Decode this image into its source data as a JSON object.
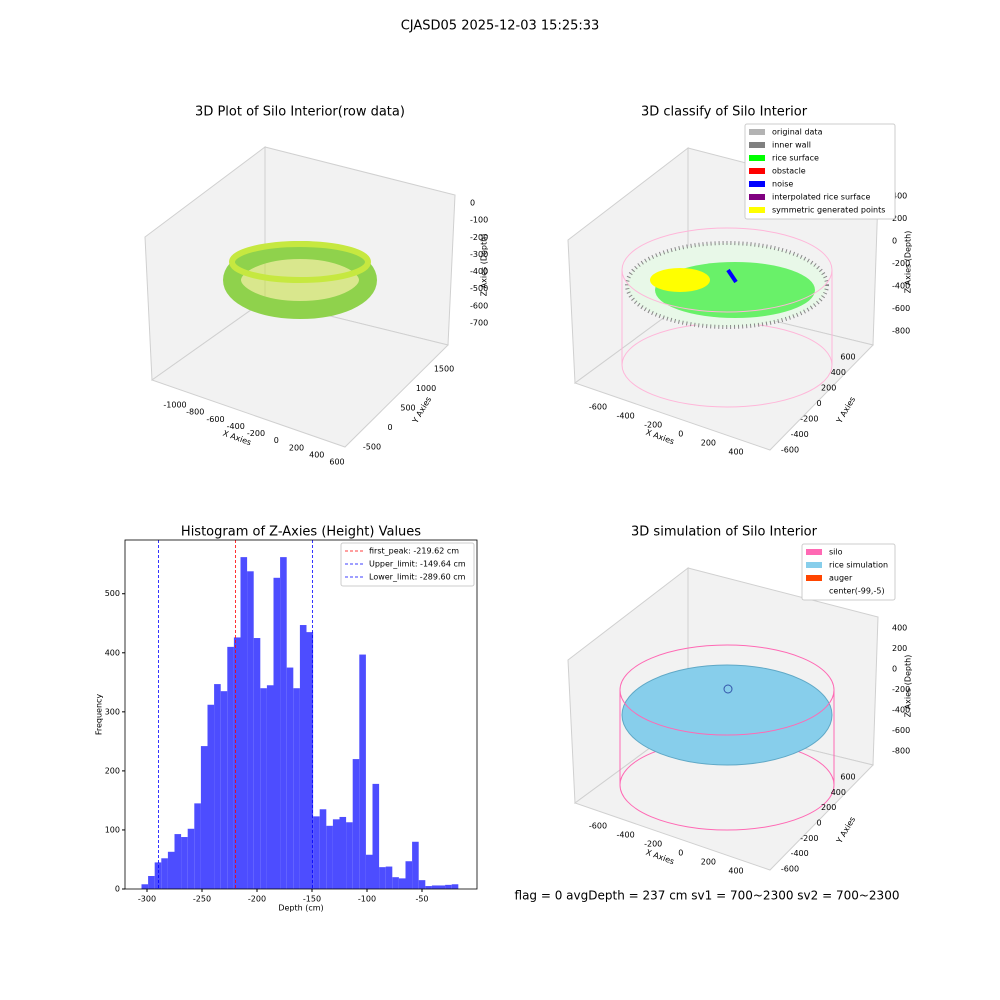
{
  "title": "CJASD05 2025-12-03 15:25:33",
  "footer": "flag = 0    avgDepth = 237 cm  sv1 = 700~2300  sv2 = 700~2300",
  "chart_data": [
    {
      "type": "histogram",
      "title": "Histogram of Z-Axies (Height) Values",
      "x_label": "Depth (cm)",
      "y_label": "Frequency",
      "color": "#4d4dff",
      "bins": [
        -305,
        -299,
        -293,
        -287,
        -281,
        -275,
        -269,
        -263,
        -257,
        -251,
        -245,
        -239,
        -233,
        -227,
        -221,
        -215,
        -209,
        -203,
        -197,
        -191,
        -185,
        -179,
        -173,
        -167,
        -161,
        -155,
        -149,
        -143,
        -137,
        -131,
        -125,
        -119,
        -113,
        -107,
        -101,
        -95,
        -89,
        -83,
        -77,
        -71,
        -65,
        -59,
        -53,
        -47,
        -41,
        -35,
        -29,
        -23,
        -17
      ],
      "values": [
        8,
        22,
        45,
        52,
        63,
        93,
        88,
        102,
        145,
        242,
        312,
        347,
        335,
        410,
        426,
        562,
        538,
        425,
        340,
        345,
        527,
        562,
        375,
        340,
        447,
        435,
        123,
        135,
        107,
        118,
        122,
        113,
        220,
        397,
        58,
        178,
        37,
        38,
        20,
        18,
        47,
        80,
        15,
        5,
        6,
        6,
        7,
        8
      ],
      "xlim": [
        -320,
        0
      ],
      "xticks": [
        -300,
        -250,
        -200,
        -150,
        -100,
        -50
      ],
      "ylim": [
        0,
        591
      ],
      "yticks": [
        0,
        100,
        200,
        300,
        400,
        500
      ],
      "vlines": [
        {
          "value": -219.62,
          "label": "first_peak: -219.62 cm",
          "color": "#ff0000"
        },
        {
          "value": -149.64,
          "label": "Upper_limit: -149.64 cm",
          "color": "#0000ff"
        },
        {
          "value": -289.6,
          "label": "Lower_limit: -289.60 cm",
          "color": "#0000ff"
        }
      ]
    },
    {
      "type": "scatter3d",
      "title": "3D Plot of Silo Interior(row data)",
      "x_label": "X Axies",
      "y_label": "Y Axies",
      "z_label": "Z Axies (Depth)",
      "xticks": [
        -1000,
        -800,
        -600,
        -400,
        -200,
        0,
        200,
        400,
        600
      ],
      "yticks": [
        -500,
        0,
        500,
        1000,
        1500
      ],
      "zticks": [
        0,
        -100,
        -200,
        -300,
        -400,
        -500,
        -600,
        -700
      ]
    },
    {
      "type": "scatter3d",
      "title": "3D classify of Silo Interior",
      "x_label": "X Axies",
      "y_label": "Y Axies",
      "z_label": "Z Axies (Depth)",
      "xticks": [
        -600,
        -400,
        -200,
        0,
        200,
        400
      ],
      "yticks": [
        -600,
        -400,
        -200,
        0,
        200,
        400,
        600
      ],
      "zticks": [
        400,
        200,
        0,
        -200,
        -400,
        -600,
        -800
      ],
      "legend": [
        {
          "name": "original data",
          "color": "#b3b3b3"
        },
        {
          "name": "inner wall",
          "color": "#808080"
        },
        {
          "name": "rice surface",
          "color": "#00ff00"
        },
        {
          "name": "obstacle",
          "color": "#ff0000"
        },
        {
          "name": "noise",
          "color": "#0000ff"
        },
        {
          "name": "interpolated rice surface",
          "color": "#800080"
        },
        {
          "name": "symmetric generated points",
          "color": "#ffff00"
        }
      ]
    },
    {
      "type": "surface3d",
      "title": "3D simulation of Silo Interior",
      "x_label": "X Axies",
      "y_label": "Y Axies",
      "z_label": "Z Axies (Depth)",
      "xticks": [
        -600,
        -400,
        -200,
        0,
        200,
        400
      ],
      "yticks": [
        -600,
        -400,
        -200,
        0,
        200,
        400,
        600
      ],
      "zticks": [
        400,
        200,
        0,
        -200,
        -400,
        -600,
        -800
      ],
      "legend": [
        {
          "name": "silo",
          "color": "#ff69b4"
        },
        {
          "name": "rice simulation",
          "color": "#87ceeb"
        },
        {
          "name": "auger",
          "color": "#ff4500"
        },
        {
          "name": "center(-99,-5)",
          "color": "#ffffff"
        }
      ]
    }
  ]
}
